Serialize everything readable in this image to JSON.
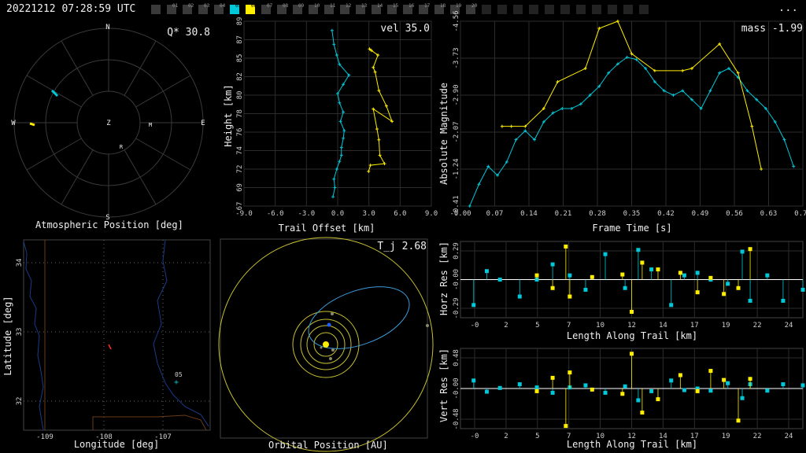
{
  "timestamp": "20221212 07:28:59 UTC",
  "menu_label": "...",
  "stations": {
    "labels": [
      "01",
      "02",
      "03",
      "04",
      "05",
      "06",
      "07",
      "08",
      "09",
      "10",
      "11",
      "12",
      "13",
      "14",
      "15",
      "16",
      "17",
      "18",
      "19",
      "20"
    ],
    "colors": {
      "05": "#00c8d8",
      "06": "#ffee00"
    }
  },
  "atmo": {
    "title": "Atmospheric Position [deg]",
    "metric_label": "Q* 30.8",
    "compass": {
      "n": "N",
      "s": "S",
      "e": "E",
      "w": "W",
      "z": "Z",
      "r": "R",
      "m": "M"
    }
  },
  "trail": {
    "metric_label": "vel 35.0",
    "xlabel": "Trail Offset [km]",
    "ylabel": "Height [km]",
    "xticks": [
      "-9.0",
      "-6.0",
      "-3.0",
      "0.0",
      "3.0",
      "6.0",
      "9.0"
    ],
    "yticks": [
      "67",
      "69",
      "72",
      "74",
      "76",
      "78",
      "80",
      "82",
      "85",
      "87",
      "89"
    ]
  },
  "mag": {
    "metric_label": "mass -1.99",
    "xlabel": "Frame Time [s]",
    "ylabel": "Absolute Magnitude",
    "xticks": [
      "-0.00",
      "0.07",
      "0.14",
      "0.21",
      "0.28",
      "0.35",
      "0.42",
      "0.49",
      "0.56",
      "0.63",
      "0.70"
    ],
    "yticks": [
      "-4.56",
      "-3.73",
      "-2.90",
      "-2.07",
      "-1.24",
      "-0.41"
    ]
  },
  "geo": {
    "xlabel": "Longitude [deg]",
    "ylabel": "Latitude [deg]",
    "xticks": [
      "-109",
      "-108",
      "-107"
    ],
    "yticks": [
      "34",
      "33",
      "32"
    ],
    "station_label": "05"
  },
  "orbit": {
    "title": "Orbital Position [AU]",
    "metric_label": "T_j 2.68"
  },
  "horz": {
    "ylabel": "Horz Res [km]",
    "xlabel": "Length Along Trail [km]",
    "yticks": [
      "0.29",
      "-0.00",
      "-0.29"
    ],
    "xticks": [
      "-0",
      "2",
      "5",
      "7",
      "10",
      "12",
      "14",
      "17",
      "19",
      "22",
      "24"
    ]
  },
  "vert": {
    "ylabel": "Vert Res [km]",
    "xlabel": "Length Along Trail [km]",
    "yticks": [
      "0.48",
      "-0.00",
      "-0.48"
    ],
    "xticks": [
      "-0",
      "2",
      "5",
      "7",
      "10",
      "12",
      "14",
      "17",
      "19",
      "22",
      "24"
    ]
  },
  "chart_data": [
    {
      "type": "line",
      "name": "trail",
      "xlim": [
        -10,
        10
      ],
      "ylim": [
        66,
        90
      ],
      "series": [
        {
          "color": "#00c8d8",
          "x": [
            -0.5,
            -0.3,
            -0.4,
            -0.1,
            0.2,
            0.4,
            0.4,
            0.6,
            0.7,
            0.3,
            0.6,
            0.2,
            0.0,
            0.6,
            1.2,
            0.2,
            -0.1,
            -0.4,
            -0.6
          ],
          "y": [
            67.2,
            68.4,
            69.5,
            70.8,
            71.8,
            72.6,
            73.6,
            74.8,
            75.8,
            77.0,
            78.2,
            79.4,
            80.6,
            81.8,
            83.0,
            84.4,
            85.6,
            87.0,
            88.8
          ]
        },
        {
          "color": "#ffee00",
          "x": [
            3.3,
            3.5,
            5.0,
            4.5,
            4.4,
            4.2,
            3.8,
            5.8,
            5.2,
            4.4,
            4.0,
            3.8,
            4.3,
            3.6,
            3.4
          ],
          "y": [
            70.5,
            71.3,
            71.5,
            72.6,
            74.6,
            76.0,
            78.6,
            77.0,
            79.0,
            81.0,
            83.4,
            84.0,
            85.6,
            86.2,
            86.4
          ]
        }
      ]
    },
    {
      "type": "line",
      "name": "magnitude",
      "xlim": [
        -0.02,
        0.72
      ],
      "ylim": [
        -4.56,
        -0.41
      ],
      "series": [
        {
          "color": "#00c8d8",
          "x": [
            0.0,
            0.02,
            0.04,
            0.06,
            0.08,
            0.1,
            0.12,
            0.14,
            0.16,
            0.18,
            0.2,
            0.22,
            0.24,
            0.26,
            0.28,
            0.3,
            0.32,
            0.34,
            0.36,
            0.38,
            0.4,
            0.42,
            0.44,
            0.46,
            0.48,
            0.5,
            0.52,
            0.54,
            0.56,
            0.58,
            0.6,
            0.62,
            0.64,
            0.66,
            0.68,
            0.7
          ],
          "y": [
            -0.41,
            -0.9,
            -1.3,
            -1.1,
            -1.4,
            -1.9,
            -2.1,
            -1.9,
            -2.3,
            -2.5,
            -2.6,
            -2.6,
            -2.7,
            -2.9,
            -3.1,
            -3.4,
            -3.6,
            -3.75,
            -3.7,
            -3.5,
            -3.2,
            -3.0,
            -2.9,
            -3.0,
            -2.8,
            -2.6,
            -3.0,
            -3.4,
            -3.5,
            -3.3,
            -3.0,
            -2.8,
            -2.6,
            -2.3,
            -1.9,
            -1.3
          ]
        },
        {
          "color": "#ffee00",
          "x": [
            0.07,
            0.09,
            0.12,
            0.16,
            0.19,
            0.25,
            0.28,
            0.32,
            0.35,
            0.4,
            0.46,
            0.48,
            0.54,
            0.58,
            0.61,
            0.63
          ],
          "y": [
            -2.2,
            -2.2,
            -2.2,
            -2.6,
            -3.2,
            -3.5,
            -4.4,
            -4.56,
            -3.83,
            -3.45,
            -3.45,
            -3.5,
            -4.05,
            -3.4,
            -2.2,
            -1.24
          ]
        }
      ]
    },
    {
      "type": "scatter",
      "name": "horizontal residuals",
      "xlim": [
        -1,
        25
      ],
      "ylim": [
        -0.45,
        0.45
      ],
      "series": [
        {
          "color": "#00c8d8",
          "x": [
            0.0,
            1.0,
            2.0,
            3.5,
            4.8,
            6.0,
            7.3,
            8.5,
            10.0,
            11.5,
            12.5,
            13.5,
            15.0,
            16.0,
            17.0,
            18.0,
            19.3,
            20.4,
            21.0,
            22.3,
            23.5,
            25.0
          ],
          "y": [
            -0.3,
            0.1,
            0.0,
            -0.2,
            0.0,
            0.18,
            0.05,
            -0.12,
            0.3,
            -0.1,
            0.35,
            0.12,
            -0.3,
            0.05,
            0.08,
            0.0,
            -0.05,
            0.33,
            -0.25,
            0.05,
            -0.25,
            -0.12
          ]
        },
        {
          "color": "#ffee00",
          "x": [
            4.8,
            6.0,
            7.0,
            7.3,
            9.0,
            11.3,
            12.0,
            12.8,
            14.0,
            15.7,
            17.0,
            18.0,
            19.0,
            20.1,
            21.0
          ],
          "y": [
            0.05,
            -0.1,
            0.39,
            -0.2,
            0.03,
            0.06,
            -0.38,
            0.2,
            0.12,
            0.08,
            -0.15,
            0.02,
            -0.17,
            -0.1,
            0.36
          ]
        }
      ]
    },
    {
      "type": "scatter",
      "name": "vertical residuals",
      "xlim": [
        -1,
        25
      ],
      "ylim": [
        -0.75,
        0.75
      ],
      "series": [
        {
          "color": "#00c8d8",
          "x": [
            0.0,
            1.0,
            2.0,
            3.5,
            4.8,
            6.0,
            7.3,
            8.5,
            10.0,
            11.5,
            12.5,
            13.5,
            15.0,
            16.0,
            17.0,
            18.0,
            19.3,
            20.4,
            21.0,
            22.3,
            23.5,
            25.0
          ],
          "y": [
            0.15,
            -0.06,
            0.01,
            0.08,
            0.02,
            -0.08,
            0.02,
            0.06,
            -0.08,
            0.04,
            -0.22,
            -0.05,
            0.15,
            -0.03,
            0.0,
            -0.04,
            0.1,
            -0.18,
            0.08,
            -0.04,
            0.08,
            0.06
          ]
        },
        {
          "color": "#ffee00",
          "x": [
            4.8,
            6.0,
            7.0,
            7.3,
            9.0,
            11.3,
            12.0,
            12.8,
            14.0,
            15.7,
            17.0,
            18.0,
            19.0,
            20.1,
            21.0
          ],
          "y": [
            -0.05,
            0.2,
            -0.7,
            0.3,
            -0.02,
            -0.1,
            0.65,
            -0.45,
            -0.2,
            0.25,
            -0.05,
            0.33,
            0.16,
            -0.6,
            0.18
          ]
        }
      ]
    }
  ]
}
